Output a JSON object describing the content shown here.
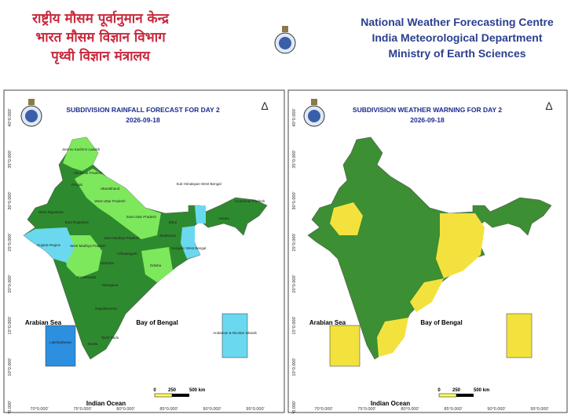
{
  "header": {
    "hindi": [
      "राष्ट्रीय मौसम पूर्वानुमान केन्द्र",
      "भारत मौसम विज्ञान विभाग",
      "पृथ्वी विज्ञान मंत्रालय"
    ],
    "english": [
      "National Weather Forecasting Centre",
      "India Meteorological Department",
      "Ministry of Earth Sciences"
    ]
  },
  "grid_labels": {
    "lat": [
      "40°0.000'",
      "35°0.000'",
      "30°0.000'",
      "25°0.000'",
      "20°0.000'",
      "15°0.000'",
      "10°0.000'",
      "5°0.000'"
    ],
    "lon": [
      "70°0.000'",
      "75°0.000'",
      "80°0.000'",
      "85°0.000'",
      "90°0.000'",
      "95°0.000'"
    ]
  },
  "panels": [
    {
      "title": "SUBDIVISION RAINFALL FORECAST FOR DAY 2",
      "date": "2026-09-18",
      "arabian_sea": "Arabian Sea",
      "bay_of_bengal": "Bay of Bengal",
      "indian_ocean": "Indian Ocean",
      "scale": [
        "0",
        "250",
        "500 km"
      ],
      "regions": [
        "Jammu Kashmir Ladakh",
        "Himachal Pradesh",
        "Punjab",
        "Uttarakhand",
        "West Uttar Pradesh",
        "East Uttar Pradesh",
        "West Rajasthan",
        "East Rajasthan",
        "Gujarat Region",
        "West Madhya Pradesh",
        "East Madhya Pradesh",
        "Chhattisgarh",
        "Bihar",
        "Jharkhand",
        "Gangetic West Bengal",
        "Sub Himalayan West Bengal",
        "Odisha",
        "Vidarbha",
        "Marathwada",
        "Telangana",
        "Rayalaseema",
        "Tamil Nadu",
        "Kerala",
        "Arunachal Pradesh",
        "Assam",
        "Lakshadweep",
        "Andaman & Nicobar Islands"
      ]
    },
    {
      "title": "SUBDIVISION WEATHER WARNING FOR DAY 2",
      "date": "2026-09-18",
      "arabian_sea": "Arabian Sea",
      "bay_of_bengal": "Bay of Bengal",
      "indian_ocean": "Indian Ocean",
      "scale": [
        "0",
        "250",
        "500 km"
      ]
    }
  ]
}
